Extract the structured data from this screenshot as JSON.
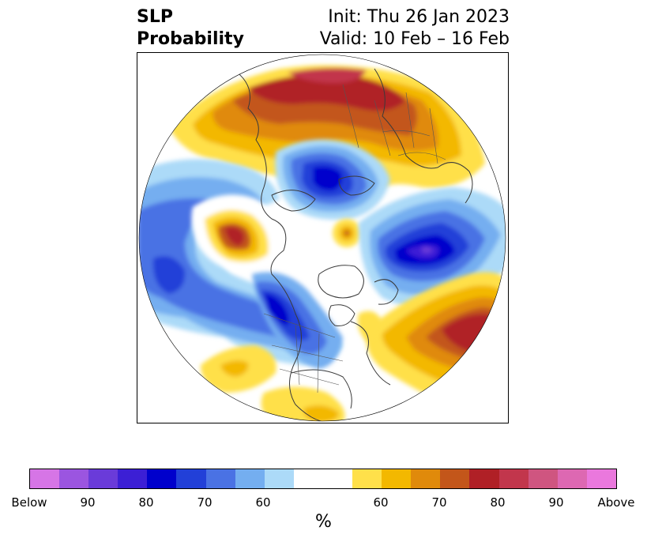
{
  "title": {
    "left_line1": "SLP",
    "left_line2": "Probability",
    "right_line1": "Init: Thu 26 Jan 2023",
    "right_line2": "Valid: 10 Feb – 16 Feb"
  },
  "colorbar": {
    "colors": [
      "#d675e6",
      "#9b55e0",
      "#6a3bd9",
      "#3c1fd5",
      "#0000cc",
      "#2240d8",
      "#4a72e4",
      "#74aef0",
      "#acdaf8",
      "#ffffff",
      "#ffe04a",
      "#f3b800",
      "#e08a0b",
      "#c3561a",
      "#b02026",
      "#c2364c",
      "#cf5580",
      "#dd68b2",
      "#ea78dd"
    ],
    "labels": [
      "Below",
      "90",
      "80",
      "70",
      "60",
      "60",
      "70",
      "80",
      "90",
      "Above"
    ],
    "unit": "%"
  },
  "map": {
    "projection": "north-polar-stereographic",
    "variable": "SLP probability"
  }
}
